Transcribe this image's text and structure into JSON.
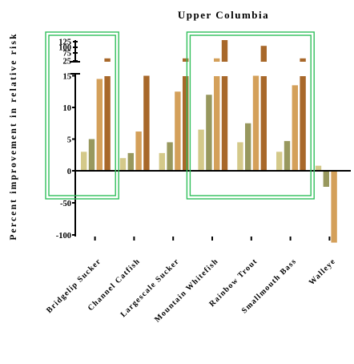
{
  "chart_data": {
    "type": "bar",
    "title": "Upper Columbia",
    "xlabel": "",
    "ylabel": "Percent improvement in relative risk",
    "categories": [
      "Bridgelip Sucker",
      "Channel Catfish",
      "Largescale Sucker",
      "Mountain Whitefish",
      "Rainbow Trout",
      "Smallmouth Bass",
      "Walleye"
    ],
    "y_axis": {
      "scale": "broken",
      "lower_ticks": [
        "-100",
        "-50",
        "0",
        "5",
        "10",
        "15"
      ],
      "upper_ticks": [
        "25",
        "75",
        "100",
        "125"
      ]
    },
    "series": [
      {
        "values": [
          3,
          2,
          2.8,
          6.5,
          4.5,
          3,
          0.8
        ],
        "color": "#d4c98a"
      },
      {
        "values": [
          5,
          2.8,
          4.5,
          12,
          7.5,
          4.7,
          -25
        ],
        "color": "#98985e"
      },
      {
        "values": [
          14.5,
          6.2,
          12.5,
          30,
          15,
          13.5,
          -112
        ],
        "color": "#d4a05a"
      },
      {
        "values": [
          30,
          15,
          30,
          130,
          95,
          30,
          0
        ],
        "color": "#a8682a"
      }
    ],
    "highlight_boxes": [
      {
        "categories": [
          "Bridgelip Sucker"
        ],
        "color": "#2fbf5a"
      },
      {
        "categories": [
          "Mountain Whitefish",
          "Rainbow Trout",
          "Smallmouth Bass"
        ],
        "color": "#2fbf5a"
      }
    ],
    "grid": false,
    "legend": "none"
  }
}
